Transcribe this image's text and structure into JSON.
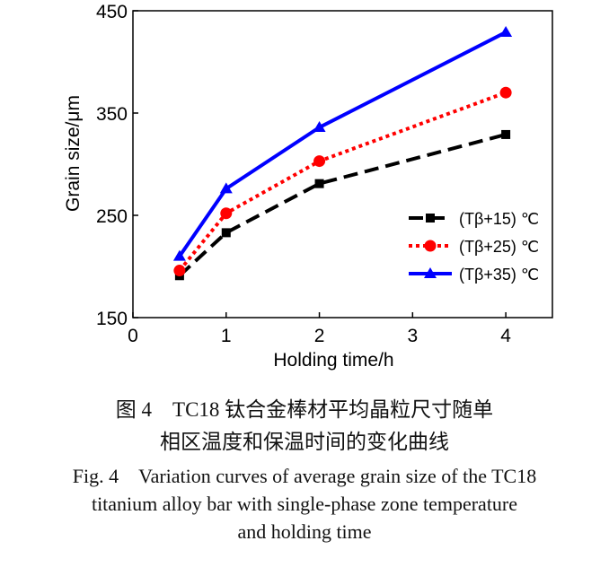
{
  "chart_data": {
    "type": "line",
    "xlabel": "Holding time/h",
    "ylabel": "Grain size/μm",
    "xlim": [
      0,
      4.5
    ],
    "ylim": [
      150,
      450
    ],
    "xticks": [
      0,
      1,
      2,
      3,
      4
    ],
    "yticks": [
      150,
      250,
      350,
      450
    ],
    "grid": false,
    "legend_placement": "right-center",
    "x": [
      0.5,
      1,
      2,
      4
    ],
    "series": [
      {
        "name": "(Tβ+15) ℃",
        "values": [
          191,
          233,
          281,
          329
        ],
        "color": "#000000",
        "marker": "square",
        "dash": "dashed"
      },
      {
        "name": "(Tβ+25) ℃",
        "values": [
          196,
          252,
          303,
          370
        ],
        "color": "#ff0000",
        "marker": "circle",
        "dash": "dotted"
      },
      {
        "name": "(Tβ+35) ℃",
        "values": [
          210,
          276,
          336,
          429
        ],
        "color": "#0000ff",
        "marker": "triangle",
        "dash": "solid"
      }
    ]
  },
  "caption": {
    "cn_line1": "图 4　TC18 钛合金棒材平均晶粒尺寸随单",
    "cn_line2": "相区温度和保温时间的变化曲线",
    "en_line1": "Fig. 4　Variation curves of average grain size of the TC18",
    "en_line2": "titanium alloy bar with single-phase zone temperature",
    "en_line3": "and holding time"
  }
}
